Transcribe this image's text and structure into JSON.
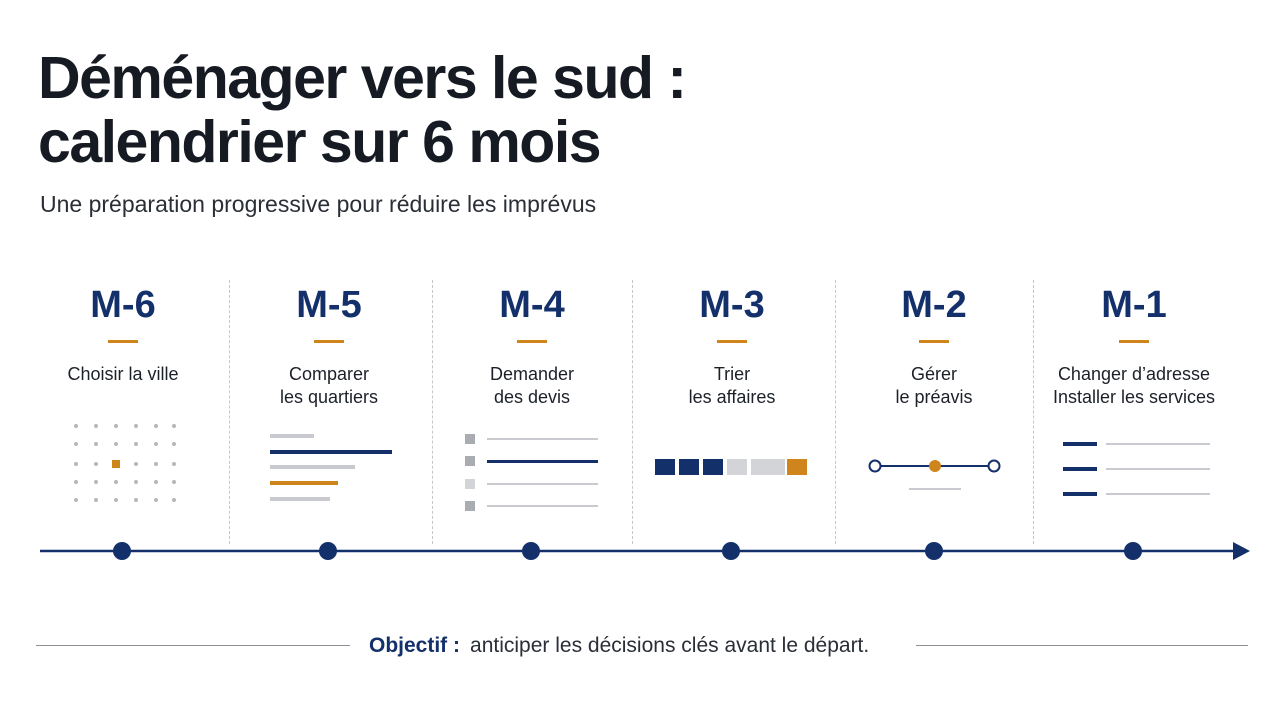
{
  "title": {
    "line1": "Déménager vers le sud :",
    "line2": "calendrier sur 6 mois"
  },
  "subtitle": "Une préparation progressive pour réduire les imprévus",
  "colors": {
    "navy": "#13306b",
    "orange": "#cf851c",
    "gray": "#bfc2c7",
    "text": "#161a22"
  },
  "steps": [
    {
      "label": "M-6",
      "task": [
        "Choisir la ville"
      ],
      "icon": "grid-dots-icon"
    },
    {
      "label": "M-5",
      "task": [
        "Comparer",
        "les quartiers"
      ],
      "icon": "compare-bars-icon"
    },
    {
      "label": "M-4",
      "task": [
        "Demander",
        "des devis"
      ],
      "icon": "quote-list-icon"
    },
    {
      "label": "M-3",
      "task": [
        "Trier",
        "les affaires"
      ],
      "icon": "sort-squares-icon"
    },
    {
      "label": "M-2",
      "task": [
        "Gérer",
        "le préavis"
      ],
      "icon": "notice-slider-icon"
    },
    {
      "label": "M-1",
      "task": [
        "Changer d’adresse",
        "Installer les services"
      ],
      "icon": "checklist-lines-icon"
    }
  ],
  "footer": {
    "label": "Objectif :",
    "text": "anticiper les décisions clés avant le départ."
  }
}
